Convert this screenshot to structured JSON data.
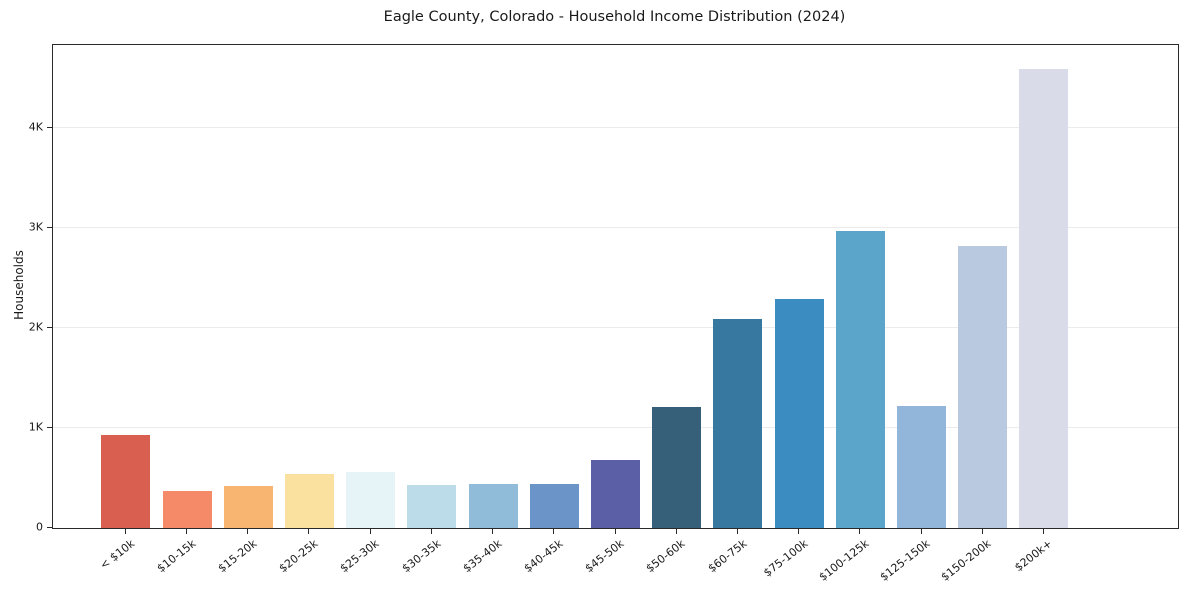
{
  "chart_data": {
    "type": "bar",
    "title": "Eagle County, Colorado - Household Income Distribution (2024)",
    "ylabel": "Households",
    "xlabel": "",
    "categories": [
      "< $10k",
      "$10-15k",
      "$15-20k",
      "$20-25k",
      "$25-30k",
      "$30-35k",
      "$35-40k",
      "$40-45k",
      "$45-50k",
      "$50-60k",
      "$60-75k",
      "$75-100k",
      "$100-125k",
      "$125-150k",
      "$150-200k",
      "$200k+"
    ],
    "values": [
      930,
      375,
      420,
      545,
      560,
      435,
      445,
      445,
      680,
      1210,
      2090,
      2295,
      2975,
      1220,
      2820,
      4590
    ],
    "colors": [
      "#d95f50",
      "#f48a67",
      "#f7b571",
      "#fae1a0",
      "#e6f3f7",
      "#bddcea",
      "#90bcd9",
      "#6b94c9",
      "#5b5fa6",
      "#36607a",
      "#36789f",
      "#3a8cc1",
      "#5ca5ca",
      "#91b6da",
      "#b8c9e0",
      "#d9dbe9"
    ],
    "ylim": [
      0,
      4830
    ],
    "yticks": [
      {
        "value": 0,
        "label": "0"
      },
      {
        "value": 1000,
        "label": "1K"
      },
      {
        "value": 2000,
        "label": "2K"
      },
      {
        "value": 3000,
        "label": "3K"
      },
      {
        "value": 4000,
        "label": "4K"
      }
    ],
    "grid": true,
    "legend": "none",
    "bar_width_fraction": 0.8
  }
}
